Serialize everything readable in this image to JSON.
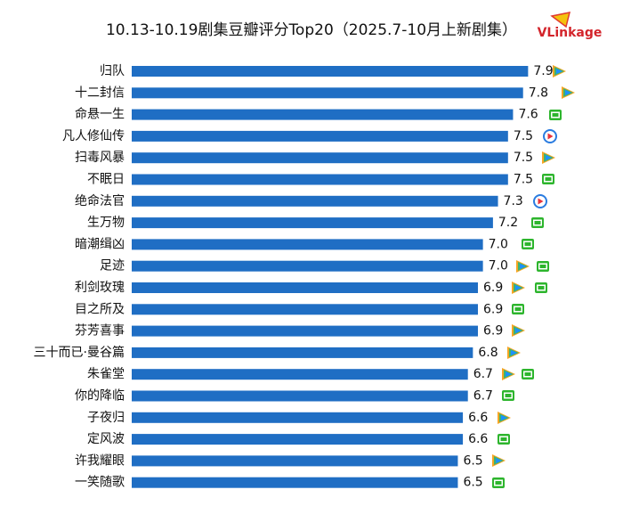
{
  "logo": "VLinkage",
  "chart_data": {
    "type": "hbar",
    "title": "10.13-10.19剧集豆瓣评分Top20（2025.7-10月上新剧集）",
    "categories": [
      "归队",
      "十二封信",
      "命悬一生",
      "凡人修仙传",
      "扫毒风暴",
      "不眠日",
      "绝命法官",
      "生万物",
      "暗潮缉凶",
      "足迹",
      "利剑玫瑰",
      "目之所及",
      "芬芳喜事",
      "三十而已·曼谷篇",
      "朱雀堂",
      "你的降临",
      "子夜归",
      "定风波",
      "许我耀眼",
      "一笑随歌"
    ],
    "values": [
      7.9,
      7.8,
      7.6,
      7.5,
      7.5,
      7.5,
      7.3,
      7.2,
      7.0,
      7.0,
      6.9,
      6.9,
      6.9,
      6.8,
      6.7,
      6.7,
      6.6,
      6.6,
      6.5,
      6.5
    ],
    "value_labels": [
      "7.9",
      "7.8",
      "7.6",
      "7.5",
      "7.5",
      "7.5",
      "7.3",
      "7.2",
      "7.0",
      "7.0",
      "6.9",
      "6.9",
      "6.9",
      "6.8",
      "6.7",
      "6.7",
      "6.6",
      "6.6",
      "6.5",
      "6.5"
    ],
    "color": "#1f6ec4",
    "xlim": [
      0,
      8
    ]
  }
}
